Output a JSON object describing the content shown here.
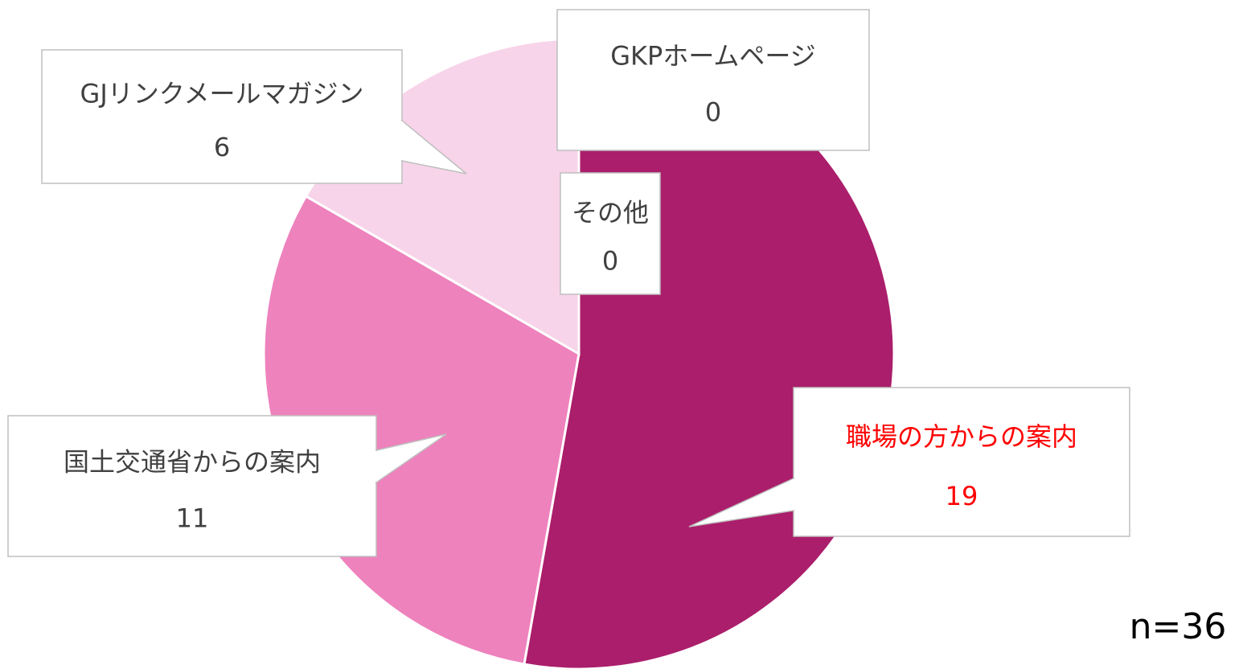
{
  "chart_data": {
    "type": "pie",
    "categories": [
      "職場の方からの案内",
      "国土交通省からの案内",
      "GJリンクメールマガジン",
      "GKPホームページ",
      "その他"
    ],
    "values": [
      19,
      11,
      6,
      0,
      0
    ],
    "colors": [
      "#ab1e6b",
      "#ee82bd",
      "#f7d4e9",
      "#c0c0c0",
      "#808080"
    ],
    "label_colors": [
      "#ff0000",
      "#404040",
      "#404040",
      "#404040",
      "#404040"
    ],
    "annotation": "n=36"
  }
}
